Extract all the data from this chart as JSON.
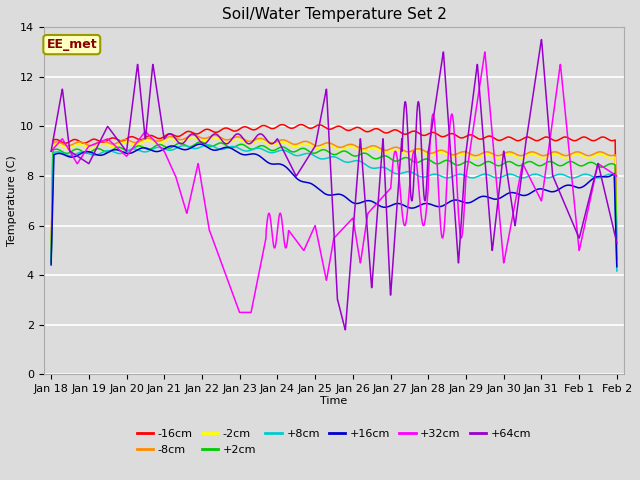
{
  "title": "Soil/Water Temperature Set 2",
  "xlabel": "Time",
  "ylabel": "Temperature (C)",
  "ylim": [
    0,
    14
  ],
  "yticks": [
    0,
    2,
    4,
    6,
    8,
    10,
    12,
    14
  ],
  "x_labels": [
    "Jan 18",
    "Jan 19",
    "Jan 20",
    "Jan 21",
    "Jan 22",
    "Jan 23",
    "Jan 24",
    "Jan 25",
    "Jan 26",
    "Jan 27",
    "Jan 28",
    "Jan 29",
    "Jan 30",
    "Jan 31",
    "Feb 1",
    "Feb 2"
  ],
  "annotation_text": "EE_met",
  "annotation_color": "#8B0000",
  "annotation_bg": "#FFFFC0",
  "annotation_edge": "#999900",
  "series": [
    {
      "label": "-16cm",
      "color": "#FF0000"
    },
    {
      "label": "-8cm",
      "color": "#FF8C00"
    },
    {
      "label": "-2cm",
      "color": "#FFFF00"
    },
    {
      "label": "+2cm",
      "color": "#00CC00"
    },
    {
      "label": "+8cm",
      "color": "#00CCCC"
    },
    {
      "label": "+16cm",
      "color": "#0000CC"
    },
    {
      "label": "+32cm",
      "color": "#FF00FF"
    },
    {
      "label": "+64cm",
      "color": "#9900CC"
    }
  ],
  "fig_bg": "#DCDCDC",
  "plot_bg": "#DCDCDC",
  "grid_color": "#FFFFFF",
  "title_fontsize": 11,
  "label_fontsize": 8,
  "tick_fontsize": 8,
  "legend_fontsize": 8
}
